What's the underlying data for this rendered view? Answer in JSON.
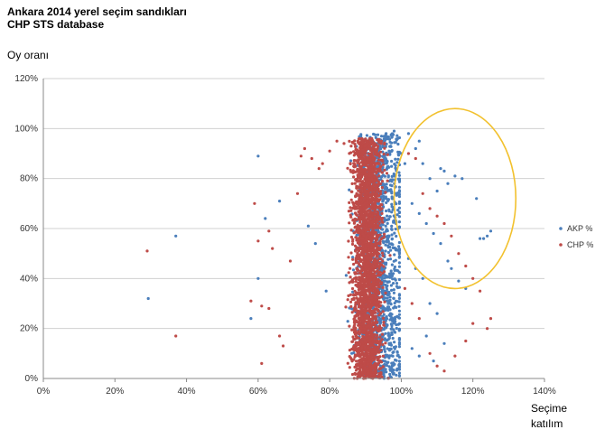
{
  "chart_data": {
    "type": "scatter",
    "title": "Ankara 2014 yerel seçim sandıkları",
    "subtitle": "CHP STS database",
    "ylabel": "Oy oranı",
    "xlabel_line1": "Seçime",
    "xlabel_line2": "katılım",
    "xlim": [
      0,
      1.4
    ],
    "ylim": [
      0,
      1.2
    ],
    "x_ticks": [
      "0%",
      "20%",
      "40%",
      "60%",
      "80%",
      "100%",
      "120%",
      "140%"
    ],
    "y_ticks": [
      "0%",
      "20%",
      "40%",
      "60%",
      "80%",
      "100%",
      "120%"
    ],
    "grid": "horizontal",
    "legend_position": "right",
    "series": [
      {
        "name": "AKP %",
        "color": "#4a7ebb",
        "points": [
          [
            0.293,
            0.32
          ],
          [
            0.37,
            0.57
          ],
          [
            0.6,
            0.4
          ],
          [
            0.62,
            0.64
          ],
          [
            0.66,
            0.71
          ],
          [
            0.58,
            0.24
          ],
          [
            0.6,
            0.89
          ],
          [
            0.74,
            0.61
          ],
          [
            0.76,
            0.54
          ],
          [
            0.79,
            0.35
          ],
          [
            1.02,
            0.98
          ],
          [
            1.04,
            0.92
          ],
          [
            1.05,
            0.95
          ],
          [
            1.06,
            0.86
          ],
          [
            1.08,
            0.8
          ],
          [
            1.1,
            0.75
          ],
          [
            1.11,
            0.84
          ],
          [
            1.12,
            0.83
          ],
          [
            1.13,
            0.78
          ],
          [
            1.15,
            0.81
          ],
          [
            1.17,
            0.8
          ],
          [
            1.21,
            0.72
          ],
          [
            1.22,
            0.56
          ],
          [
            1.23,
            0.56
          ],
          [
            1.24,
            0.57
          ],
          [
            1.25,
            0.59
          ],
          [
            1.03,
            0.7
          ],
          [
            1.05,
            0.66
          ],
          [
            1.07,
            0.62
          ],
          [
            1.09,
            0.58
          ],
          [
            1.11,
            0.54
          ],
          [
            1.13,
            0.47
          ],
          [
            1.14,
            0.44
          ],
          [
            1.16,
            0.39
          ],
          [
            1.18,
            0.36
          ],
          [
            1.02,
            0.48
          ],
          [
            1.04,
            0.44
          ],
          [
            1.06,
            0.4
          ],
          [
            1.08,
            0.3
          ],
          [
            1.1,
            0.26
          ],
          [
            1.03,
            0.12
          ],
          [
            1.05,
            0.09
          ],
          [
            1.07,
            0.17
          ],
          [
            1.09,
            0.07
          ],
          [
            1.12,
            0.14
          ],
          [
            0.98,
            0.99
          ],
          [
            0.99,
            0.96
          ],
          [
            0.97,
            0.93
          ],
          [
            1.0,
            0.9
          ],
          [
            1.01,
            0.86
          ]
        ],
        "cloud": {
          "x_center": 0.94,
          "x_spread": 0.07,
          "y_min": 0.0,
          "y_max": 0.98
        }
      },
      {
        "name": "CHP %",
        "color": "#be4b48",
        "points": [
          [
            0.29,
            0.51
          ],
          [
            0.37,
            0.17
          ],
          [
            0.61,
            0.06
          ],
          [
            0.6,
            0.55
          ],
          [
            0.63,
            0.59
          ],
          [
            0.64,
            0.52
          ],
          [
            0.66,
            0.17
          ],
          [
            0.67,
            0.13
          ],
          [
            0.58,
            0.31
          ],
          [
            0.59,
            0.7
          ],
          [
            0.61,
            0.29
          ],
          [
            0.63,
            0.28
          ],
          [
            0.69,
            0.47
          ],
          [
            0.71,
            0.74
          ],
          [
            0.72,
            0.89
          ],
          [
            0.73,
            0.92
          ],
          [
            0.75,
            0.88
          ],
          [
            0.77,
            0.84
          ],
          [
            0.78,
            0.86
          ],
          [
            0.8,
            0.91
          ],
          [
            0.82,
            0.95
          ],
          [
            0.84,
            0.94
          ],
          [
            0.86,
            0.93
          ],
          [
            1.02,
            0.9
          ],
          [
            1.04,
            0.88
          ],
          [
            1.06,
            0.74
          ],
          [
            1.08,
            0.68
          ],
          [
            1.1,
            0.65
          ],
          [
            1.12,
            0.62
          ],
          [
            1.14,
            0.57
          ],
          [
            1.16,
            0.5
          ],
          [
            1.18,
            0.45
          ],
          [
            1.2,
            0.4
          ],
          [
            1.22,
            0.35
          ],
          [
            1.24,
            0.2
          ],
          [
            1.25,
            0.24
          ],
          [
            1.2,
            0.22
          ],
          [
            1.18,
            0.15
          ],
          [
            1.15,
            0.09
          ],
          [
            1.12,
            0.03
          ],
          [
            1.1,
            0.05
          ],
          [
            1.08,
            0.1
          ],
          [
            1.05,
            0.24
          ],
          [
            1.03,
            0.3
          ],
          [
            1.01,
            0.36
          ]
        ],
        "cloud": {
          "x_center": 0.905,
          "x_spread": 0.045,
          "y_min": 0.0,
          "y_max": 0.96
        }
      }
    ],
    "annotation": {
      "type": "ellipse",
      "color": "#f2c12e",
      "cx": 1.15,
      "cy": 0.72,
      "rx": 0.17,
      "ry": 0.36
    }
  }
}
